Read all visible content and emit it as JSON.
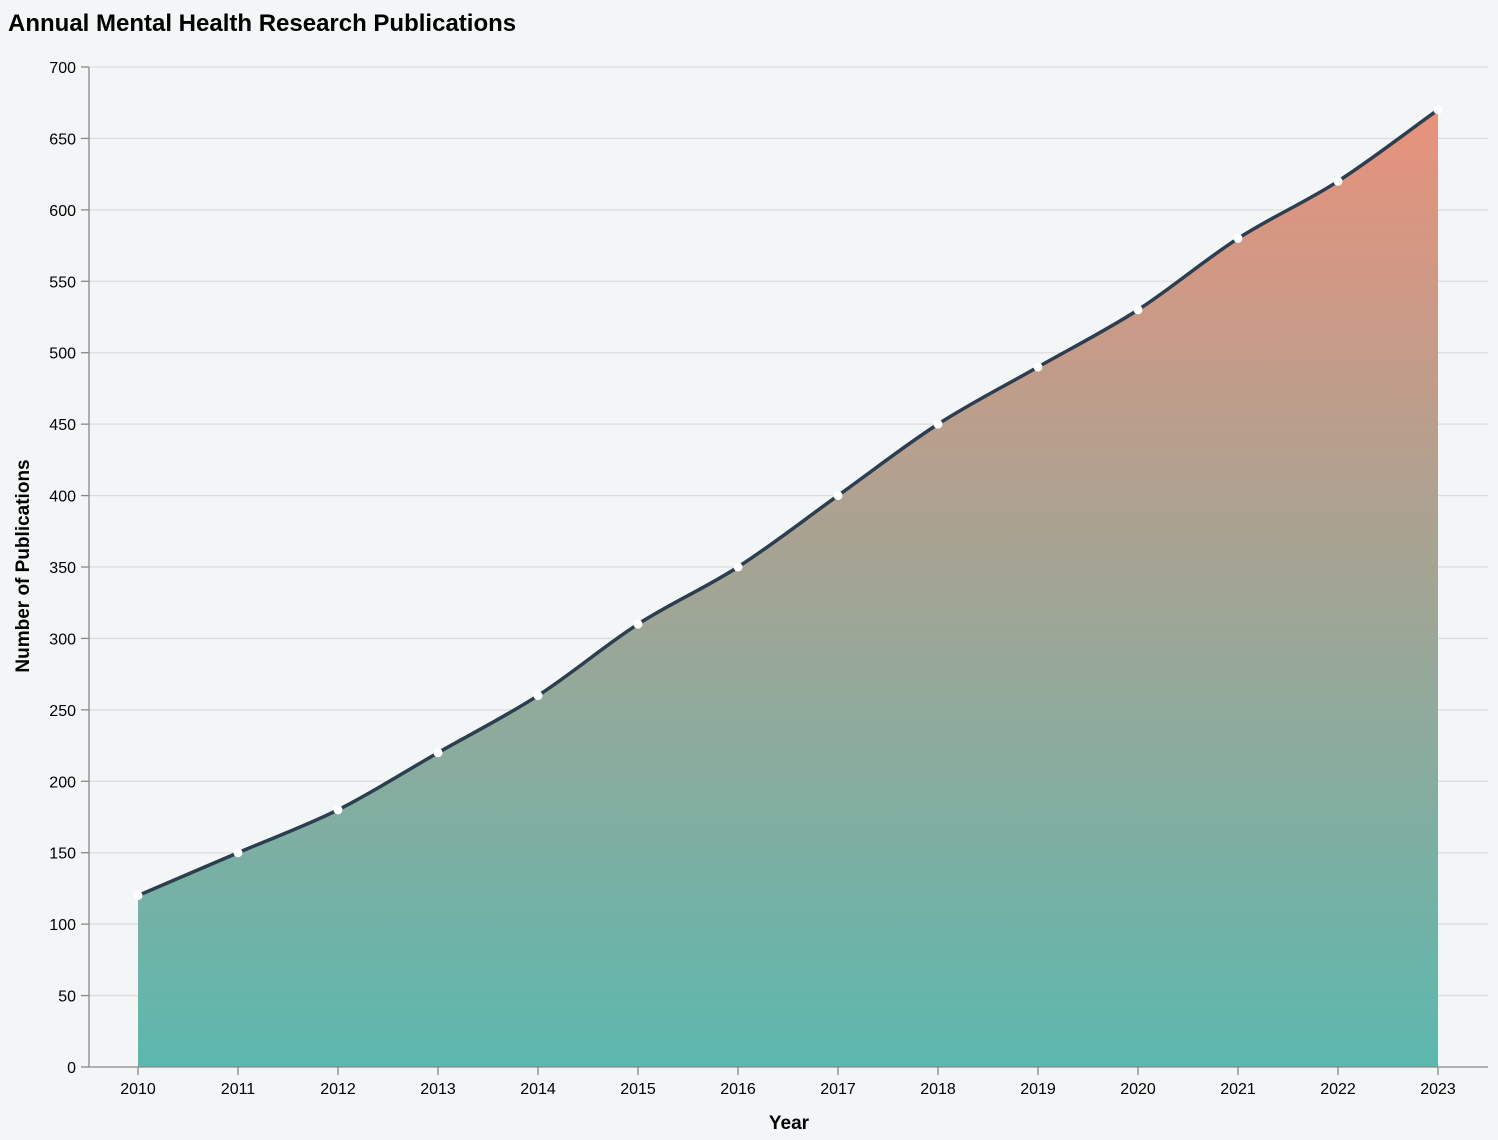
{
  "chart_data": {
    "type": "area",
    "title": "Annual Mental Health Research Publications",
    "xlabel": "Year",
    "ylabel": "Number of Publications",
    "x": [
      "2010",
      "2011",
      "2012",
      "2013",
      "2014",
      "2015",
      "2016",
      "2017",
      "2018",
      "2019",
      "2020",
      "2021",
      "2022",
      "2023"
    ],
    "values": [
      120,
      150,
      180,
      220,
      260,
      310,
      350,
      400,
      450,
      490,
      530,
      580,
      620,
      670
    ],
    "ylim": [
      0,
      700
    ],
    "yticks": [
      "0",
      "50",
      "100",
      "150",
      "200",
      "250",
      "300",
      "350",
      "400",
      "450",
      "500",
      "550",
      "600",
      "650",
      "700"
    ],
    "grid": true,
    "colors": {
      "background": "#F3F6F7",
      "line": "#2C3E50",
      "area_gradient_top": "#E8927C",
      "area_gradient_bottom": "#5CB8AE",
      "point": "#FFFFFF",
      "grid": "#DDDDDD"
    }
  }
}
